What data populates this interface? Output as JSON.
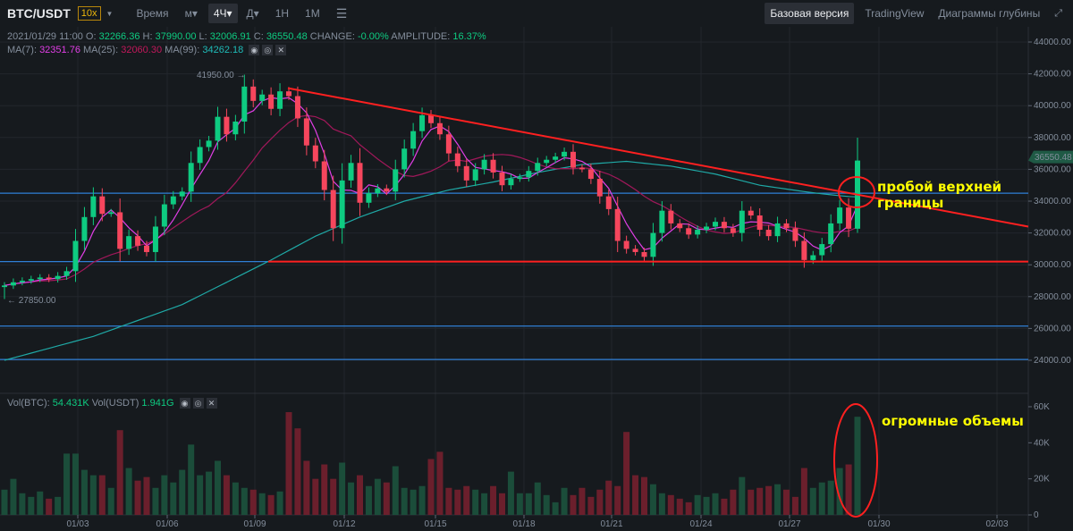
{
  "header": {
    "symbol": "BTC/USDT",
    "leverage": "10x",
    "intervals": [
      "Время",
      "м▾",
      "4Ч▾",
      "Д▾",
      "1Н",
      "1М"
    ],
    "active_interval": "4Ч▾",
    "settings_icon": "sliders-icon",
    "views": [
      "Базовая версия",
      "TradingView",
      "Диаграммы глубины"
    ],
    "active_view": "Базовая версия",
    "fullscreen_icon": "expand-icon"
  },
  "ohlc_info": {
    "date": "2021/01/29 11:00",
    "o_label": "O:",
    "o": "32266.36",
    "h_label": "H:",
    "h": "37990.00",
    "l_label": "L:",
    "l": "32006.91",
    "c_label": "C:",
    "c": "36550.48",
    "change_label": "CHANGE:",
    "change": "-0.00%",
    "amplitude_label": "AMPLITUDE:",
    "amplitude": "16.37%"
  },
  "ma_info": {
    "ma7_label": "MA(7):",
    "ma7": "32351.76",
    "ma25_label": "MA(25):",
    "ma25": "32060.30",
    "ma99_label": "MA(99):",
    "ma99": "34262.18"
  },
  "vol_info": {
    "btc_label": "Vol(BTC):",
    "btc": "54.431K",
    "usdt_label": "Vol(USDT)",
    "usdt": "1.941G"
  },
  "colors": {
    "up": "#0ecb81",
    "down": "#f6465d",
    "vol_up": "#1b4d3a",
    "vol_down": "#6b1f2c",
    "ma7": "#e13ee6",
    "ma25": "#a0185a",
    "ma99": "#1fa9a6",
    "level_line": "#2f7fd6",
    "trendline": "#ff2020",
    "annotation": "#ffff00",
    "background": "#161a1e"
  },
  "chart_data": {
    "type": "candlestick",
    "price_axis": {
      "ticks": [
        "44000.00",
        "42000.00",
        "40000.00",
        "38000.00",
        "36000.00",
        "34000.00",
        "32000.00",
        "30000.00",
        "28000.00",
        "26000.00",
        "24000.00"
      ],
      "ylim": [
        23000,
        45000
      ]
    },
    "volume_axis": {
      "ticks": [
        "60K",
        "40K",
        "20K",
        "0"
      ],
      "ylim": [
        0,
        65
      ]
    },
    "x_ticks": [
      "01/03",
      "01/06",
      "01/09",
      "01/12",
      "01/15",
      "01/18",
      "01/21",
      "01/24",
      "01/27",
      "01/30",
      "02/03"
    ],
    "current_price": "36550.48",
    "high_marker": "41950.00",
    "low_marker": "27850.00",
    "first_open": 28600,
    "close": [
      28700,
      28900,
      29000,
      29100,
      29200,
      29100,
      29300,
      29600,
      31500,
      33000,
      34300,
      33200,
      33300,
      31000,
      31800,
      31200,
      30800,
      32400,
      33800,
      34300,
      34600,
      36400,
      37400,
      37800,
      39300,
      38200,
      39000,
      41200,
      40300,
      40700,
      39800,
      40900,
      40600,
      39200,
      37500,
      36500,
      34700,
      32300,
      35300,
      36400,
      33900,
      34500,
      34800,
      34600,
      36000,
      37300,
      38400,
      39400,
      38900,
      38200,
      37000,
      36200,
      35300,
      36000,
      36600,
      35800,
      35000,
      35400,
      35500,
      35900,
      36400,
      36600,
      36800,
      37100,
      36100,
      36000,
      35400,
      34300,
      33500,
      31500,
      31000,
      30800,
      30500,
      32000,
      33400,
      32600,
      32300,
      31900,
      32200,
      32400,
      32700,
      32300,
      32000,
      33400,
      33100,
      32200,
      31800,
      32600,
      32300,
      31500,
      30300,
      30600,
      31300,
      32600,
      33600,
      32266.36,
      36550.48
    ],
    "last_candle": {
      "open": 32266.36,
      "high": 37990.0,
      "low": 32006.91,
      "close": 36550.48
    },
    "volume_k": [
      14,
      20,
      12,
      10,
      13,
      9,
      10,
      34,
      34,
      25,
      22,
      22,
      15,
      47,
      26,
      19,
      21,
      15,
      22,
      18,
      25,
      39,
      22,
      24,
      30,
      22,
      18,
      15,
      14,
      12,
      11,
      13,
      57,
      48,
      30,
      20,
      28,
      20,
      29,
      18,
      22,
      16,
      20,
      18,
      27,
      15,
      14,
      16,
      31,
      35,
      15,
      14,
      16,
      14,
      12,
      16,
      12,
      24,
      12,
      12,
      18,
      11,
      7,
      15,
      11,
      15,
      10,
      14,
      19,
      16,
      46,
      22,
      21,
      17,
      12,
      11,
      9,
      7,
      11,
      10,
      12,
      9,
      14,
      21,
      14,
      15,
      16,
      17,
      14,
      10,
      26,
      15,
      18,
      19,
      26,
      28,
      54.431
    ],
    "ma99": [
      24000,
      24150,
      24300,
      24450,
      24600,
      24750,
      24900,
      25050,
      25200,
      25350,
      25500,
      25700,
      25900,
      26100,
      26300,
      26500,
      26700,
      26900,
      27100,
      27300,
      27500,
      27780,
      28060,
      28340,
      28620,
      28900,
      29180,
      29460,
      29740,
      30020,
      30300,
      30600,
      30900,
      31200,
      31500,
      31800,
      32040,
      32280,
      32520,
      32760,
      33000,
      33200,
      33400,
      33600,
      33800,
      34000,
      34140,
      34280,
      34420,
      34560,
      34700,
      34800,
      34900,
      35000,
      35100,
      35200,
      35320,
      35440,
      35560,
      35680,
      35800,
      35900,
      36000,
      36100,
      36200,
      36300,
      36340,
      36380,
      36420,
      36460,
      36500,
      36440,
      36380,
      36320,
      36260,
      36200,
      36100,
      36000,
      35900,
      35800,
      35700,
      35560,
      35420,
      35280,
      35140,
      35000,
      34920,
      34840,
      34760,
      34680,
      34600,
      34530,
      34460,
      34400,
      34340,
      34290,
      34262.18
    ],
    "horizontal_levels": [
      34500,
      30200,
      26150,
      24050
    ],
    "support_line": 30200,
    "resistance_trendline": {
      "from": [
        "01/09",
        41100
      ],
      "to": [
        "02/02",
        32400
      ]
    }
  },
  "annotations": {
    "breakout": "пробой верхней границы",
    "volume": "огромные объемы"
  }
}
